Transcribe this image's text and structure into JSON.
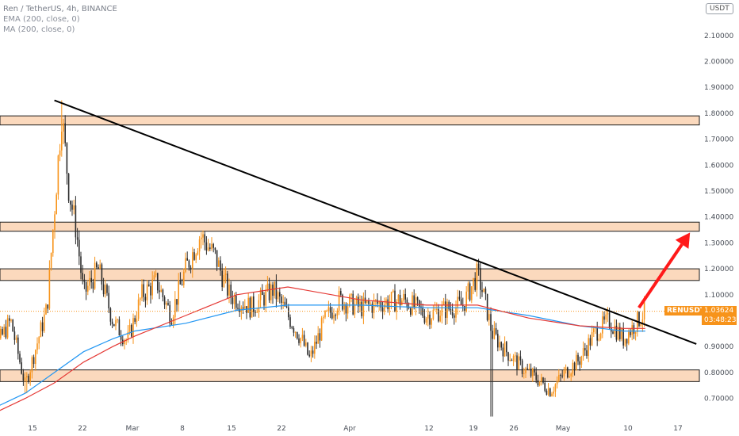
{
  "legend": {
    "main": "Ren / TetherUS, 4h, BINANCE",
    "ema": "EMA (200, close, 0)",
    "ma": "MA (200, close, 0)"
  },
  "currency_badge": "USDT",
  "price_tag": {
    "symbol": "RENUSDT",
    "price": "1.03624",
    "countdown": "03:48:23"
  },
  "colors": {
    "up": "#f7931a",
    "down": "#2b2b2b",
    "ema": "#2196f3",
    "ma": "#e53935",
    "zone_fill": "#fbd9bd",
    "zone_border": "#1a1a1a",
    "trendline": "#000000",
    "arrow": "#ff1a1a"
  },
  "chart_data": {
    "type": "candlestick",
    "y_axis_ticks": [
      "2.10000",
      "2.00000",
      "1.90000",
      "1.80000",
      "1.70000",
      "1.60000",
      "1.50000",
      "1.40000",
      "1.30000",
      "1.20000",
      "1.10000",
      "1.00000",
      "0.90000",
      "0.80000",
      "0.70000"
    ],
    "y_axis_values": [
      2.1,
      2.0,
      1.9,
      1.8,
      1.7,
      1.6,
      1.5,
      1.4,
      1.3,
      1.2,
      1.1,
      1.0,
      0.9,
      0.8,
      0.7
    ],
    "x_axis_labels": [
      "15",
      "22",
      "Mar",
      "8",
      "15",
      "22",
      "Apr",
      "12",
      "19",
      "26",
      "May",
      "10",
      "17"
    ],
    "ylim": [
      0.61,
      2.26
    ],
    "last_price": 1.03624,
    "zones": [
      {
        "low": 1.755,
        "high": 1.79
      },
      {
        "low": 1.345,
        "high": 1.38
      },
      {
        "low": 1.155,
        "high": 1.2
      },
      {
        "low": 0.765,
        "high": 0.81
      }
    ],
    "trendline": {
      "from": {
        "date": "Feb 18",
        "price": 1.85
      },
      "to": {
        "date": "May 17",
        "price": 0.91
      }
    },
    "key_path": [
      {
        "date": "Feb 8",
        "price": 0.8
      },
      {
        "date": "Feb 12",
        "price": 1.0
      },
      {
        "date": "Feb 14",
        "price": 0.75
      },
      {
        "date": "Feb 16",
        "price": 0.95
      },
      {
        "date": "Feb 17",
        "price": 1.05
      },
      {
        "date": "Feb 19",
        "price": 1.8
      },
      {
        "date": "Feb 20",
        "price": 1.5
      },
      {
        "date": "Feb 21",
        "price": 1.35
      },
      {
        "date": "Feb 22",
        "price": 1.1
      },
      {
        "date": "Feb 24",
        "price": 1.2
      },
      {
        "date": "Feb 26",
        "price": 1.0
      },
      {
        "date": "Feb 28",
        "price": 0.92
      },
      {
        "date": "Mar 2",
        "price": 1.1
      },
      {
        "date": "Mar 4",
        "price": 1.15
      },
      {
        "date": "Mar 6",
        "price": 1.02
      },
      {
        "date": "Mar 8",
        "price": 1.2
      },
      {
        "date": "Mar 10",
        "price": 1.33
      },
      {
        "date": "Mar 12",
        "price": 1.25
      },
      {
        "date": "Mar 14",
        "price": 1.1
      },
      {
        "date": "Mar 17",
        "price": 1.05
      },
      {
        "date": "Mar 20",
        "price": 1.12
      },
      {
        "date": "Mar 22",
        "price": 1.02
      },
      {
        "date": "Mar 24",
        "price": 0.92
      },
      {
        "date": "Mar 25",
        "price": 0.85
      },
      {
        "date": "Mar 27",
        "price": 1.0
      },
      {
        "date": "Mar 29",
        "price": 1.08
      },
      {
        "date": "Apr 1",
        "price": 1.05
      },
      {
        "date": "Apr 4",
        "price": 1.07
      },
      {
        "date": "Apr 7",
        "price": 1.08
      },
      {
        "date": "Apr 10",
        "price": 1.02
      },
      {
        "date": "Apr 12",
        "price": 1.04
      },
      {
        "date": "Apr 15",
        "price": 1.06
      },
      {
        "date": "Apr 17",
        "price": 1.18
      },
      {
        "date": "Apr 18",
        "price": 1.08
      },
      {
        "date": "Apr 19",
        "price": 0.95
      },
      {
        "date": "Apr 21",
        "price": 0.88
      },
      {
        "date": "Apr 23",
        "price": 0.82
      },
      {
        "date": "Apr 25",
        "price": 0.78
      },
      {
        "date": "Apr 27",
        "price": 0.73
      },
      {
        "date": "Apr 29",
        "price": 0.8
      },
      {
        "date": "May 1",
        "price": 0.85
      },
      {
        "date": "May 3",
        "price": 0.95
      },
      {
        "date": "May 5",
        "price": 1.0
      },
      {
        "date": "May 7",
        "price": 0.93
      },
      {
        "date": "May 9",
        "price": 1.0
      },
      {
        "date": "May 10",
        "price": 1.036
      }
    ],
    "ema_path": [
      {
        "date": "Feb 8",
        "price": 0.64
      },
      {
        "date": "Feb 14",
        "price": 0.72
      },
      {
        "date": "Feb 18",
        "price": 0.8
      },
      {
        "date": "Feb 22",
        "price": 0.88
      },
      {
        "date": "Feb 26",
        "price": 0.93
      },
      {
        "date": "Mar 1",
        "price": 0.96
      },
      {
        "date": "Mar 8",
        "price": 0.99
      },
      {
        "date": "Mar 15",
        "price": 1.04
      },
      {
        "date": "Mar 22",
        "price": 1.06
      },
      {
        "date": "Apr 1",
        "price": 1.06
      },
      {
        "date": "Apr 10",
        "price": 1.05
      },
      {
        "date": "Apr 17",
        "price": 1.05
      },
      {
        "date": "Apr 24",
        "price": 1.02
      },
      {
        "date": "May 1",
        "price": 0.98
      },
      {
        "date": "May 7",
        "price": 0.96
      },
      {
        "date": "May 10",
        "price": 0.96
      }
    ],
    "ma_path": [
      {
        "date": "Feb 8",
        "price": 0.62
      },
      {
        "date": "Feb 14",
        "price": 0.7
      },
      {
        "date": "Feb 18",
        "price": 0.76
      },
      {
        "date": "Feb 22",
        "price": 0.84
      },
      {
        "date": "Feb 26",
        "price": 0.9
      },
      {
        "date": "Mar 1",
        "price": 0.94
      },
      {
        "date": "Mar 8",
        "price": 1.02
      },
      {
        "date": "Mar 15",
        "price": 1.1
      },
      {
        "date": "Mar 22",
        "price": 1.13
      },
      {
        "date": "Apr 1",
        "price": 1.08
      },
      {
        "date": "Apr 10",
        "price": 1.06
      },
      {
        "date": "Apr 17",
        "price": 1.06
      },
      {
        "date": "Apr 24",
        "price": 1.01
      },
      {
        "date": "May 1",
        "price": 0.98
      },
      {
        "date": "May 7",
        "price": 0.97
      },
      {
        "date": "May 10",
        "price": 0.97
      }
    ],
    "projection_arrow": {
      "from": {
        "date": "May 10",
        "price": 1.05
      },
      "to": {
        "date": "May 17",
        "price": 1.34
      }
    }
  }
}
